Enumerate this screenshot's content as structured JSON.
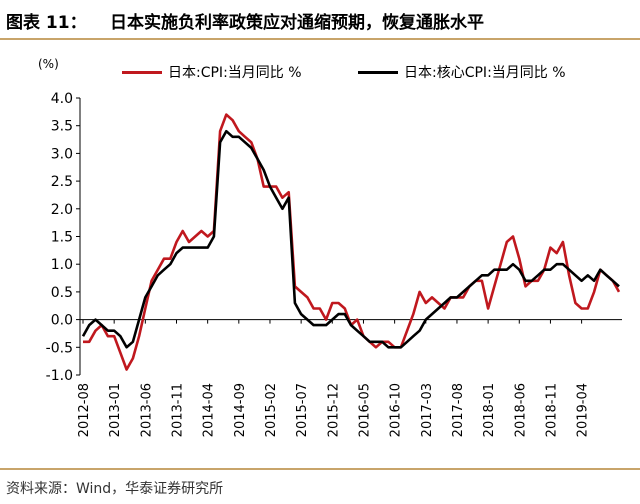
{
  "header": {
    "figure_label": "图表 11：",
    "title": "日本实施负利率政策应对通缩预期，恢复通胀水平"
  },
  "footer": {
    "source": "资料来源：Wind，华泰证券研究所"
  },
  "colors": {
    "cpi": "#c0181e",
    "core": "#000000",
    "rule": "#c8a46a"
  },
  "chart_data": {
    "type": "line",
    "unit_label": "(%)",
    "ylim": [
      -1.0,
      4.0
    ],
    "yticks": [
      "4.0",
      "3.5",
      "3.0",
      "2.5",
      "2.0",
      "1.5",
      "1.0",
      "0.5",
      "0.0",
      "-0.5",
      "-1.0"
    ],
    "xticks": [
      "2012-08",
      "2013-01",
      "2013-06",
      "2013-11",
      "2014-04",
      "2014-09",
      "2015-02",
      "2015-07",
      "2015-12",
      "2016-05",
      "2016-10",
      "2017-03",
      "2017-08",
      "2018-01",
      "2018-06",
      "2018-11",
      "2019-04"
    ],
    "x_start": "2012-08",
    "legend_position": "top",
    "series": [
      {
        "name": "日本:CPI:当月同比 %",
        "color": "#c0181e",
        "values": [
          -0.4,
          -0.4,
          -0.2,
          -0.1,
          -0.3,
          -0.3,
          -0.6,
          -0.9,
          -0.7,
          -0.3,
          0.2,
          0.7,
          0.9,
          1.1,
          1.1,
          1.4,
          1.6,
          1.4,
          1.5,
          1.6,
          1.5,
          1.6,
          3.4,
          3.7,
          3.6,
          3.4,
          3.3,
          3.2,
          2.9,
          2.4,
          2.4,
          2.4,
          2.2,
          2.3,
          0.6,
          0.5,
          0.4,
          0.2,
          0.2,
          0.0,
          0.3,
          0.3,
          0.2,
          -0.1,
          0.0,
          -0.3,
          -0.4,
          -0.5,
          -0.4,
          -0.4,
          -0.5,
          -0.5,
          -0.2,
          0.1,
          0.5,
          0.3,
          0.4,
          0.3,
          0.2,
          0.4,
          0.4,
          0.4,
          0.6,
          0.7,
          0.7,
          0.2,
          0.6,
          1.0,
          1.4,
          1.5,
          1.1,
          0.6,
          0.7,
          0.7,
          0.9,
          1.3,
          1.2,
          1.4,
          0.8,
          0.3,
          0.2,
          0.2,
          0.5,
          0.9,
          0.8,
          0.7,
          0.5
        ]
      },
      {
        "name": "日本:核心CPI:当月同比 %",
        "color": "#000000",
        "values": [
          -0.3,
          -0.1,
          0.0,
          -0.1,
          -0.2,
          -0.2,
          -0.3,
          -0.5,
          -0.4,
          0.0,
          0.4,
          0.6,
          0.8,
          0.9,
          1.0,
          1.2,
          1.3,
          1.3,
          1.3,
          1.3,
          1.3,
          1.5,
          3.2,
          3.4,
          3.3,
          3.3,
          3.2,
          3.1,
          2.9,
          2.7,
          2.4,
          2.2,
          2.0,
          2.2,
          0.3,
          0.1,
          0.0,
          -0.1,
          -0.1,
          -0.1,
          0.0,
          0.1,
          0.1,
          -0.1,
          -0.2,
          -0.3,
          -0.4,
          -0.4,
          -0.4,
          -0.5,
          -0.5,
          -0.5,
          -0.4,
          -0.3,
          -0.2,
          0.0,
          0.1,
          0.2,
          0.3,
          0.4,
          0.4,
          0.5,
          0.6,
          0.7,
          0.8,
          0.8,
          0.9,
          0.9,
          0.9,
          1.0,
          0.9,
          0.7,
          0.7,
          0.8,
          0.9,
          0.9,
          1.0,
          1.0,
          0.9,
          0.8,
          0.7,
          0.8,
          0.7,
          0.9,
          0.8,
          0.7,
          0.6
        ]
      }
    ]
  }
}
